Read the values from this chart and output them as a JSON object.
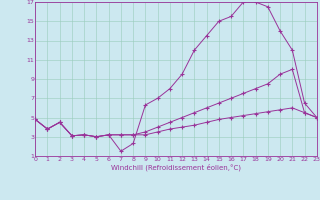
{
  "xlabel": "Windchill (Refroidissement éolien,°C)",
  "bg_color": "#cce8f0",
  "line_color": "#993399",
  "grid_color": "#99ccbb",
  "xlim": [
    0,
    23
  ],
  "ylim": [
    1,
    17
  ],
  "xticks": [
    0,
    1,
    2,
    3,
    4,
    5,
    6,
    7,
    8,
    9,
    10,
    11,
    12,
    13,
    14,
    15,
    16,
    17,
    18,
    19,
    20,
    21,
    22,
    23
  ],
  "yticks": [
    1,
    3,
    5,
    7,
    9,
    11,
    13,
    15,
    17
  ],
  "series1_x": [
    0,
    1,
    2,
    3,
    4,
    5,
    6,
    7,
    8,
    9,
    10,
    11,
    12,
    13,
    14,
    15,
    16,
    17,
    18,
    19,
    20,
    21,
    22,
    23
  ],
  "series1_y": [
    4.8,
    3.8,
    4.5,
    3.1,
    3.2,
    3.0,
    3.2,
    1.5,
    2.3,
    6.3,
    7.0,
    8.0,
    9.5,
    12.0,
    13.5,
    15.0,
    15.5,
    17.0,
    17.0,
    16.5,
    14.0,
    12.0,
    6.5,
    5.0
  ],
  "series2_x": [
    0,
    1,
    2,
    3,
    4,
    5,
    6,
    7,
    8,
    9,
    10,
    11,
    12,
    13,
    14,
    15,
    16,
    17,
    18,
    19,
    20,
    21,
    22,
    23
  ],
  "series2_y": [
    4.8,
    3.8,
    4.5,
    3.1,
    3.2,
    3.0,
    3.2,
    3.2,
    3.2,
    3.5,
    4.0,
    4.5,
    5.0,
    5.5,
    6.0,
    6.5,
    7.0,
    7.5,
    8.0,
    8.5,
    9.5,
    10.0,
    5.5,
    5.0
  ],
  "series3_x": [
    0,
    1,
    2,
    3,
    4,
    5,
    6,
    7,
    8,
    9,
    10,
    11,
    12,
    13,
    14,
    15,
    16,
    17,
    18,
    19,
    20,
    21,
    22,
    23
  ],
  "series3_y": [
    4.8,
    3.8,
    4.5,
    3.1,
    3.2,
    3.0,
    3.2,
    3.2,
    3.2,
    3.2,
    3.5,
    3.8,
    4.0,
    4.2,
    4.5,
    4.8,
    5.0,
    5.2,
    5.4,
    5.6,
    5.8,
    6.0,
    5.5,
    5.0
  ],
  "label_fontsize": 4.5,
  "tick_fontsize": 4.5,
  "xlabel_fontsize": 5.0,
  "marker_size": 2.5,
  "line_width": 0.7
}
